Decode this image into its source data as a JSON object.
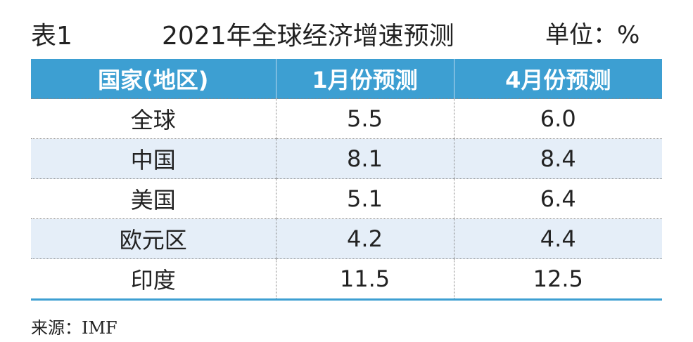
{
  "header": {
    "label": "表1",
    "title": "2021年全球经济增速预测",
    "unit": "单位：%"
  },
  "table": {
    "columns": [
      "国家(地区)",
      "1月份预测",
      "4月份预测"
    ],
    "rows": [
      [
        "全球",
        "5.5",
        "6.0"
      ],
      [
        "中国",
        "8.1",
        "8.4"
      ],
      [
        "美国",
        "5.1",
        "6.4"
      ],
      [
        "欧元区",
        "4.2",
        "4.4"
      ],
      [
        "印度",
        "11.5",
        "12.5"
      ]
    ]
  },
  "footer": {
    "source": "来源：IMF"
  }
}
